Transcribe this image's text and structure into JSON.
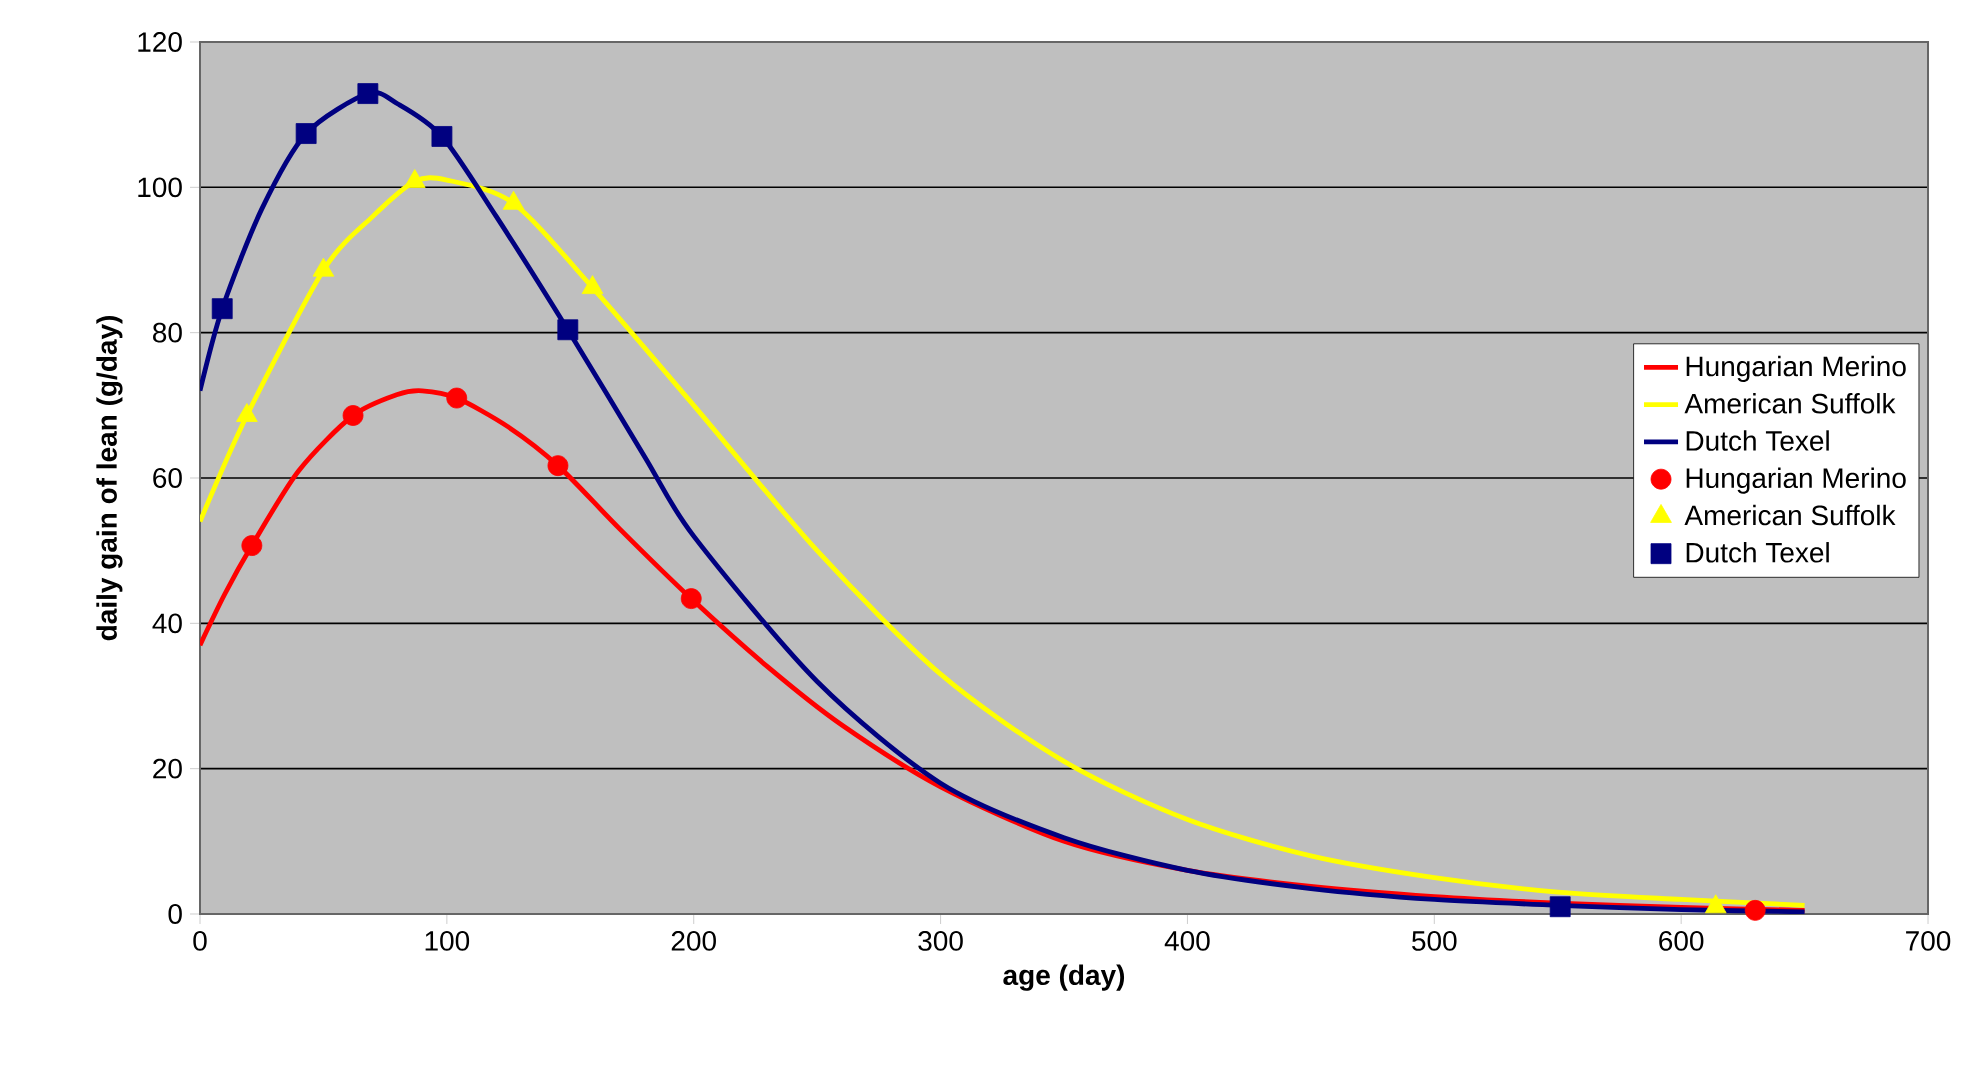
{
  "chart_data": {
    "type": "line",
    "xlabel": "age (day)",
    "ylabel": "daily gain of lean (g/day)",
    "xlim": [
      0,
      700
    ],
    "xticks": [
      0,
      100,
      200,
      300,
      400,
      500,
      600,
      700
    ],
    "ylim": [
      0,
      120
    ],
    "yticks": [
      0,
      20,
      40,
      60,
      80,
      100,
      120
    ],
    "grid": "y",
    "legend": "right",
    "series": [
      {
        "name": "Hungarian Merino",
        "marker": "none",
        "color": "#ff0000",
        "x": [
          0,
          10,
          21,
          40,
          62,
          80,
          90,
          104,
          125,
          145,
          170,
          199,
          230,
          260,
          300,
          350,
          400,
          450,
          500,
          550,
          600,
          650
        ],
        "values": [
          37,
          44,
          50.7,
          61,
          68.6,
          71.5,
          72,
          71,
          67,
          61.7,
          53,
          43.4,
          34,
          26,
          17.5,
          10,
          6,
          3.8,
          2.4,
          1.5,
          0.9,
          0.5
        ]
      },
      {
        "name": "American Suffolk",
        "marker": "none",
        "color": "#ffff00",
        "x": [
          0,
          19,
          50,
          70,
          87,
          100,
          127,
          159,
          200,
          250,
          300,
          350,
          400,
          450,
          500,
          550,
          600,
          650
        ],
        "values": [
          54,
          68.6,
          88.6,
          96,
          100.8,
          101,
          97.8,
          86.2,
          70,
          50,
          33,
          21,
          13,
          8,
          5,
          3,
          2,
          1.2
        ]
      },
      {
        "name": "Dutch Texel",
        "marker": "none",
        "color": "#000080",
        "x": [
          0,
          9,
          25,
          43,
          68,
          80,
          98,
          120,
          149,
          180,
          200,
          250,
          300,
          350,
          400,
          450,
          500,
          550,
          600,
          650
        ],
        "values": [
          72,
          83.3,
          97,
          107.4,
          112.9,
          111.5,
          107,
          96,
          80.4,
          63,
          52,
          32,
          18,
          10.5,
          6,
          3.5,
          2,
          1.2,
          0.6,
          0.3
        ]
      },
      {
        "name": "Hungarian Merino",
        "type": "scatter",
        "marker": "circle",
        "color": "#ff0000",
        "x": [
          21,
          62,
          104,
          145,
          199,
          630
        ],
        "values": [
          50.7,
          68.6,
          71,
          61.7,
          43.4,
          0.5
        ]
      },
      {
        "name": "American Suffolk",
        "type": "scatter",
        "marker": "triangle",
        "color": "#ffff00",
        "x": [
          19,
          50,
          87,
          127,
          159,
          614
        ],
        "values": [
          68.6,
          88.6,
          100.8,
          97.8,
          86.2,
          1
        ]
      },
      {
        "name": "Dutch Texel",
        "type": "scatter",
        "marker": "square",
        "color": "#000080",
        "x": [
          9,
          43,
          68,
          98,
          149,
          551
        ],
        "values": [
          83.3,
          107.4,
          112.9,
          107,
          80.4,
          1
        ]
      }
    ]
  }
}
